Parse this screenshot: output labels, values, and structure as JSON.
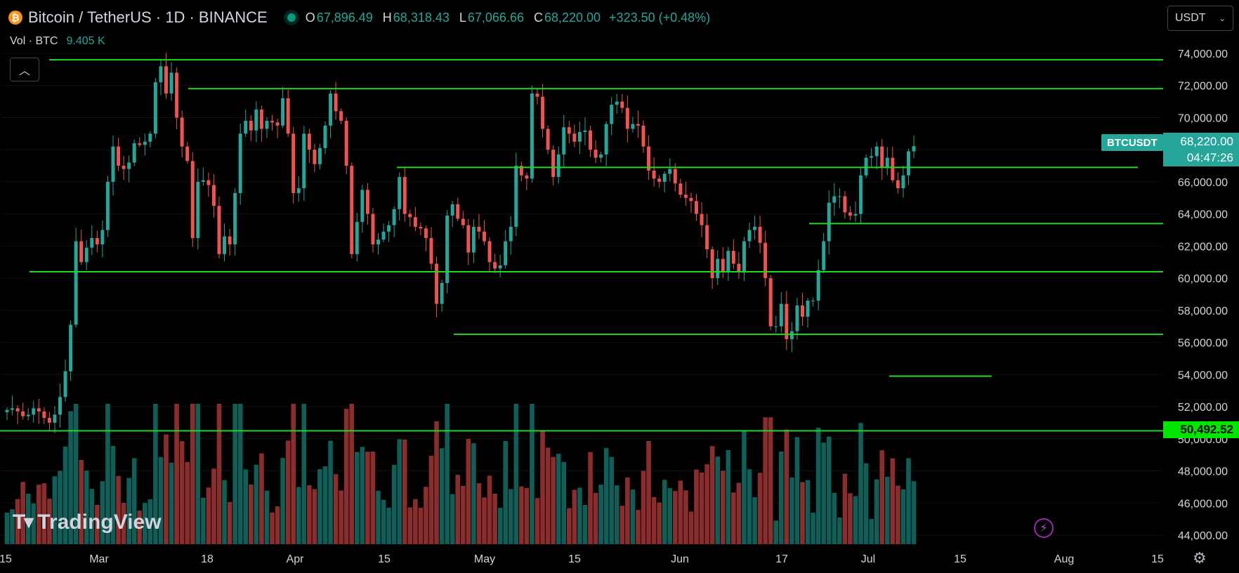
{
  "header": {
    "symbol_full": "Bitcoin / TetherUS · 1D · BINANCE",
    "open_key": "O",
    "open": "67,896.49",
    "high_key": "H",
    "high": "68,318.43",
    "low_key": "L",
    "low": "67,066.66",
    "close_key": "C",
    "close": "68,220.00",
    "change": "+323.50 (+0.48%)"
  },
  "volume_legend": {
    "label": "Vol · BTC",
    "value": "9.405 K"
  },
  "currency_select": {
    "value": "USDT"
  },
  "last_price": {
    "symbol": "BTCUSDT",
    "price": "68,220.00",
    "countdown": "04:47:26"
  },
  "level_label": "50,492.52",
  "logo_text": "TradingView",
  "colors": {
    "up": "#26a69a",
    "down": "#ef5350",
    "vol_up": "#0f5e57",
    "vol_down": "#8c2d2d",
    "levels": "#22d822"
  },
  "chart_data": {
    "type": "candlestick",
    "y_ticks": [
      "74,000.00",
      "72,000.00",
      "70,000.00",
      "68,000.00",
      "66,000.00",
      "64,000.00",
      "62,000.00",
      "60,000.00",
      "58,000.00",
      "56,000.00",
      "54,000.00",
      "52,000.00",
      "50,000.00",
      "48,000.00",
      "46,000.00",
      "44,000.00"
    ],
    "ylim": [
      43600,
      74800
    ],
    "x_ticks": [
      "15",
      "Mar",
      "18",
      "Apr",
      "15",
      "May",
      "15",
      "Jun",
      "17",
      "Jul",
      "15",
      "Aug",
      "15"
    ],
    "horizontal_levels": [
      73600,
      71800,
      66900,
      63400,
      60400,
      56500,
      53900,
      50493
    ],
    "close_series": [
      51800,
      51900,
      51700,
      51400,
      51500,
      51900,
      51700,
      51300,
      51000,
      51500,
      52600,
      54200,
      57100,
      62300,
      61000,
      61900,
      62500,
      62100,
      63000,
      66000,
      68200,
      67000,
      66800,
      67200,
      68400,
      68300,
      68500,
      69000,
      72200,
      73200,
      71500,
      72800,
      70000,
      68200,
      67300,
      62500,
      66000,
      66100,
      65800,
      64500,
      61500,
      62600,
      62100,
      65300,
      69000,
      69800,
      69200,
      70500,
      69300,
      69800,
      69700,
      69500,
      71200,
      69000,
      65300,
      65600,
      69000,
      68000,
      67100,
      68100,
      69500,
      71500,
      70400,
      69800,
      67000,
      61500,
      63500,
      65500,
      64000,
      62100,
      62400,
      62900,
      63300,
      64300,
      66300,
      64000,
      63800,
      63200,
      63100,
      62500,
      60900,
      58400,
      59700,
      63900,
      64600,
      63700,
      63300,
      61600,
      63200,
      62900,
      62300,
      61000,
      60600,
      60800,
      62300,
      63200,
      67000,
      66400,
      66200,
      71500,
      71300,
      69300,
      68000,
      66300,
      67700,
      69400,
      69000,
      68500,
      69100,
      69200,
      68000,
      67500,
      67700,
      69600,
      70800,
      71000,
      70600,
      69300,
      69600,
      69500,
      68200,
      66700,
      66200,
      66000,
      66500,
      66800,
      65900,
      65200,
      65000,
      64800,
      64000,
      63300,
      61800,
      60000,
      61200,
      60400,
      61700,
      60900,
      60400,
      62300,
      63000,
      63200,
      62200,
      60000,
      57000,
      57000,
      58400,
      56200,
      56700,
      58300,
      57600,
      58600,
      58600,
      60500,
      62300,
      64700,
      65100,
      65100,
      64100,
      63900,
      64000,
      66400,
      67500,
      67600,
      68200,
      66900,
      67500,
      66100,
      65600,
      66400,
      67900,
      68220
    ]
  }
}
